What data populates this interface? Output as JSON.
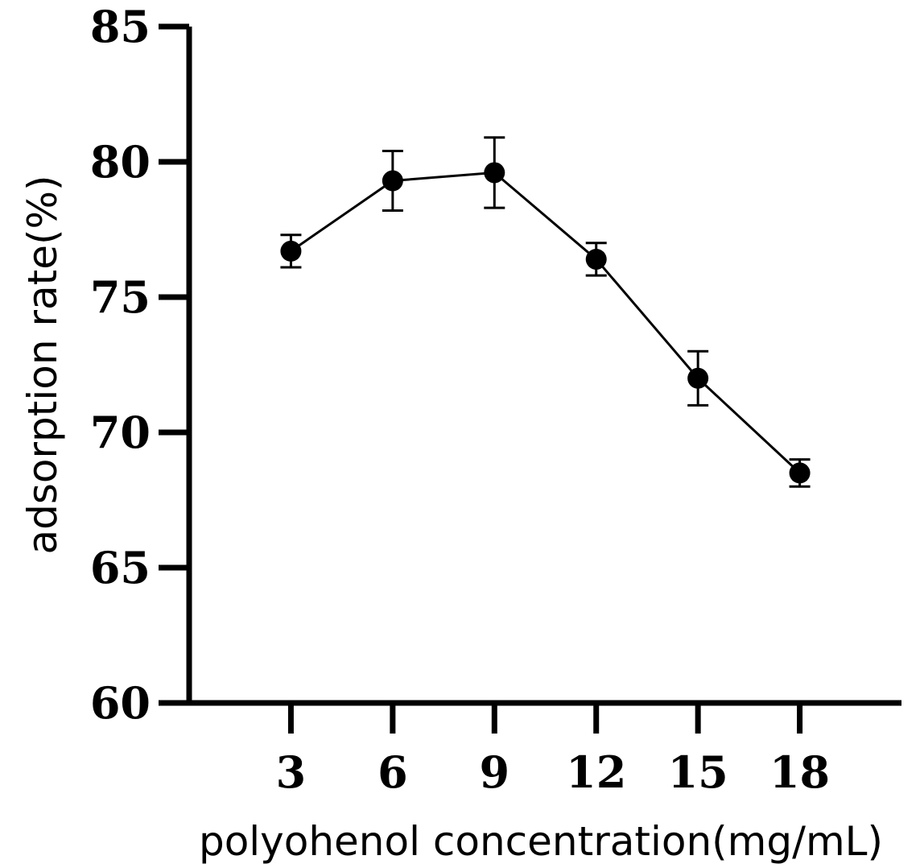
{
  "chart_data": {
    "type": "line",
    "title": "",
    "xlabel": "polyohenol concentration(mg/mL)",
    "ylabel": "adsorption rate(%)",
    "x": [
      3,
      6,
      9,
      12,
      15,
      18
    ],
    "x_tick_labels": [
      "3",
      "6",
      "9",
      "12",
      "15",
      "18"
    ],
    "y_tick_labels": [
      "60",
      "65",
      "70",
      "75",
      "80",
      "85"
    ],
    "yticks": [
      60,
      65,
      70,
      75,
      80,
      85
    ],
    "xlim": [
      0,
      21
    ],
    "ylim": [
      60,
      85
    ],
    "series": [
      {
        "values": [
          76.7,
          79.3,
          79.6,
          76.4,
          72.0,
          68.5
        ],
        "error": [
          0.6,
          1.1,
          1.3,
          0.6,
          1.0,
          0.5
        ]
      }
    ],
    "grid": false,
    "legend": false,
    "colors": {
      "line": "#000000",
      "marker": "#000000"
    }
  }
}
